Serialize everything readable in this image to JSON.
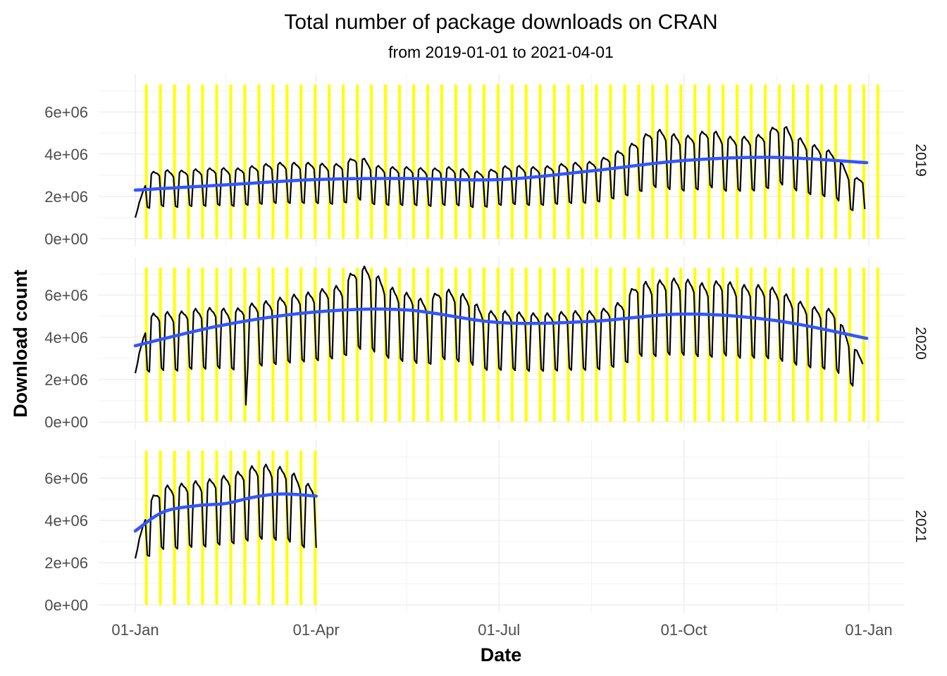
{
  "chart_data": {
    "type": "line",
    "title": "Total number of package downloads on CRAN",
    "subtitle": "from 2019-01-01 to 2021-04-01",
    "xlabel": "Date",
    "ylabel": "Download count",
    "x_ticks": [
      "01-Jan",
      "01-Apr",
      "01-Jul",
      "01-Oct",
      "01-Jan"
    ],
    "x_tick_days": [
      0,
      90,
      181,
      273,
      365
    ],
    "y_ticks": [
      "0e+00",
      "2e+06",
      "4e+06",
      "6e+06"
    ],
    "y_tick_values": [
      0,
      2000000,
      4000000,
      6000000
    ],
    "ylim": [
      0,
      7300000
    ],
    "grid": true,
    "colors": {
      "daily_line": "#000000",
      "smooth": "#3355ff",
      "weekend_bars": "#ffff00"
    },
    "weekend_bar_height": 7300000,
    "panels": [
      {
        "label": "2019",
        "weekend_weeks": 53,
        "daily_weekly_points": [
          [
            "01-01",
            1000000
          ],
          [
            "01-07",
            3000000
          ],
          [
            "01-14",
            3200000
          ],
          [
            "01-21",
            3100000
          ],
          [
            "01-28",
            3200000
          ],
          [
            "02-04",
            3200000
          ],
          [
            "02-11",
            3300000
          ],
          [
            "02-18",
            3200000
          ],
          [
            "02-25",
            3300000
          ],
          [
            "03-04",
            3400000
          ],
          [
            "03-11",
            3500000
          ],
          [
            "03-18",
            3500000
          ],
          [
            "03-25",
            3500000
          ],
          [
            "04-01",
            3500000
          ],
          [
            "04-08",
            3400000
          ],
          [
            "04-15",
            3500000
          ],
          [
            "04-22",
            3900000
          ],
          [
            "04-29",
            3400000
          ],
          [
            "05-06",
            3300000
          ],
          [
            "05-13",
            3300000
          ],
          [
            "05-20",
            3300000
          ],
          [
            "05-27",
            3200000
          ],
          [
            "06-03",
            3300000
          ],
          [
            "06-10",
            3300000
          ],
          [
            "06-17",
            3100000
          ],
          [
            "06-24",
            3100000
          ],
          [
            "07-01",
            3300000
          ],
          [
            "07-08",
            3400000
          ],
          [
            "07-15",
            3300000
          ],
          [
            "07-22",
            3300000
          ],
          [
            "07-29",
            3400000
          ],
          [
            "08-05",
            3500000
          ],
          [
            "08-12",
            3500000
          ],
          [
            "08-19",
            3600000
          ],
          [
            "08-26",
            3900000
          ],
          [
            "09-02",
            4200000
          ],
          [
            "09-09",
            4600000
          ],
          [
            "09-16",
            5100000
          ],
          [
            "09-23",
            4900000
          ],
          [
            "09-30",
            4700000
          ],
          [
            "10-07",
            4800000
          ],
          [
            "10-14",
            5100000
          ],
          [
            "10-21",
            4700000
          ],
          [
            "10-28",
            4700000
          ],
          [
            "11-04",
            4700000
          ],
          [
            "11-11",
            4900000
          ],
          [
            "11-18",
            5400000
          ],
          [
            "11-25",
            4800000
          ],
          [
            "12-02",
            4400000
          ],
          [
            "12-09",
            4200000
          ],
          [
            "12-16",
            3900000
          ],
          [
            "12-23",
            2800000
          ],
          [
            "12-30",
            2800000
          ]
        ],
        "smooth": [
          [
            "01-01",
            2300000
          ],
          [
            "02-15",
            2550000
          ],
          [
            "04-01",
            2800000
          ],
          [
            "05-15",
            2850000
          ],
          [
            "07-01",
            2800000
          ],
          [
            "08-15",
            3200000
          ],
          [
            "10-01",
            3700000
          ],
          [
            "11-15",
            3850000
          ],
          [
            "12-31",
            3600000
          ]
        ]
      },
      {
        "label": "2020",
        "weekend_weeks": 53,
        "daily_weekly_points": [
          [
            "01-01",
            2300000
          ],
          [
            "01-07",
            4900000
          ],
          [
            "01-14",
            5100000
          ],
          [
            "01-21",
            5000000
          ],
          [
            "01-28",
            5200000
          ],
          [
            "02-04",
            5200000
          ],
          [
            "02-11",
            5300000
          ],
          [
            "02-18",
            5100000
          ],
          [
            "02-25",
            5400000
          ],
          [
            "03-03",
            5500000
          ],
          [
            "03-10",
            5600000
          ],
          [
            "03-17",
            5800000
          ],
          [
            "03-24",
            5900000
          ],
          [
            "03-31",
            6000000
          ],
          [
            "04-07",
            6200000
          ],
          [
            "04-14",
            6300000
          ],
          [
            "04-21",
            7200000
          ],
          [
            "04-28",
            7100000
          ],
          [
            "05-05",
            6400000
          ],
          [
            "05-12",
            6000000
          ],
          [
            "05-19",
            5900000
          ],
          [
            "05-26",
            5500000
          ],
          [
            "06-02",
            6200000
          ],
          [
            "06-09",
            6000000
          ],
          [
            "06-16",
            5800000
          ],
          [
            "06-23",
            5100000
          ],
          [
            "06-30",
            5100000
          ],
          [
            "07-07",
            5100000
          ],
          [
            "07-14",
            5000000
          ],
          [
            "07-21",
            5000000
          ],
          [
            "07-28",
            5000000
          ],
          [
            "08-04",
            5100000
          ],
          [
            "08-11",
            5100000
          ],
          [
            "08-18",
            5100000
          ],
          [
            "08-25",
            5300000
          ],
          [
            "09-01",
            5600000
          ],
          [
            "09-08",
            6500000
          ],
          [
            "09-15",
            6400000
          ],
          [
            "09-22",
            6600000
          ],
          [
            "09-29",
            6600000
          ],
          [
            "10-06",
            6500000
          ],
          [
            "10-13",
            6300000
          ],
          [
            "10-20",
            6600000
          ],
          [
            "10-27",
            6300000
          ],
          [
            "11-03",
            6300000
          ],
          [
            "11-10",
            6300000
          ],
          [
            "11-17",
            6100000
          ],
          [
            "11-24",
            5700000
          ],
          [
            "12-01",
            5400000
          ],
          [
            "12-08",
            5200000
          ],
          [
            "12-15",
            5200000
          ],
          [
            "12-22",
            3800000
          ],
          [
            "12-29",
            2900000
          ]
        ],
        "anomalies": [
          [
            "02-25",
            800000
          ]
        ],
        "smooth": [
          [
            "01-01",
            3600000
          ],
          [
            "02-15",
            4600000
          ],
          [
            "04-01",
            5200000
          ],
          [
            "05-15",
            5300000
          ],
          [
            "07-01",
            4700000
          ],
          [
            "08-15",
            4750000
          ],
          [
            "10-01",
            5100000
          ],
          [
            "11-15",
            4800000
          ],
          [
            "12-31",
            3950000
          ]
        ]
      },
      {
        "label": "2021",
        "weekend_weeks": 13,
        "daily_weekly_points": [
          [
            "01-01",
            2200000
          ],
          [
            "01-07",
            4700000
          ],
          [
            "01-14",
            5500000
          ],
          [
            "01-21",
            5500000
          ],
          [
            "01-28",
            5700000
          ],
          [
            "02-04",
            5700000
          ],
          [
            "02-11",
            5900000
          ],
          [
            "02-18",
            6000000
          ],
          [
            "02-25",
            6300000
          ],
          [
            "03-04",
            6500000
          ],
          [
            "03-11",
            6400000
          ],
          [
            "03-18",
            6300000
          ],
          [
            "03-25",
            5700000
          ],
          [
            "04-01",
            5400000
          ]
        ],
        "smooth": [
          [
            "01-01",
            3500000
          ],
          [
            "01-15",
            4400000
          ],
          [
            "02-01",
            4700000
          ],
          [
            "02-15",
            4800000
          ],
          [
            "03-01",
            5100000
          ],
          [
            "03-15",
            5250000
          ],
          [
            "04-01",
            5150000
          ]
        ]
      }
    ]
  }
}
